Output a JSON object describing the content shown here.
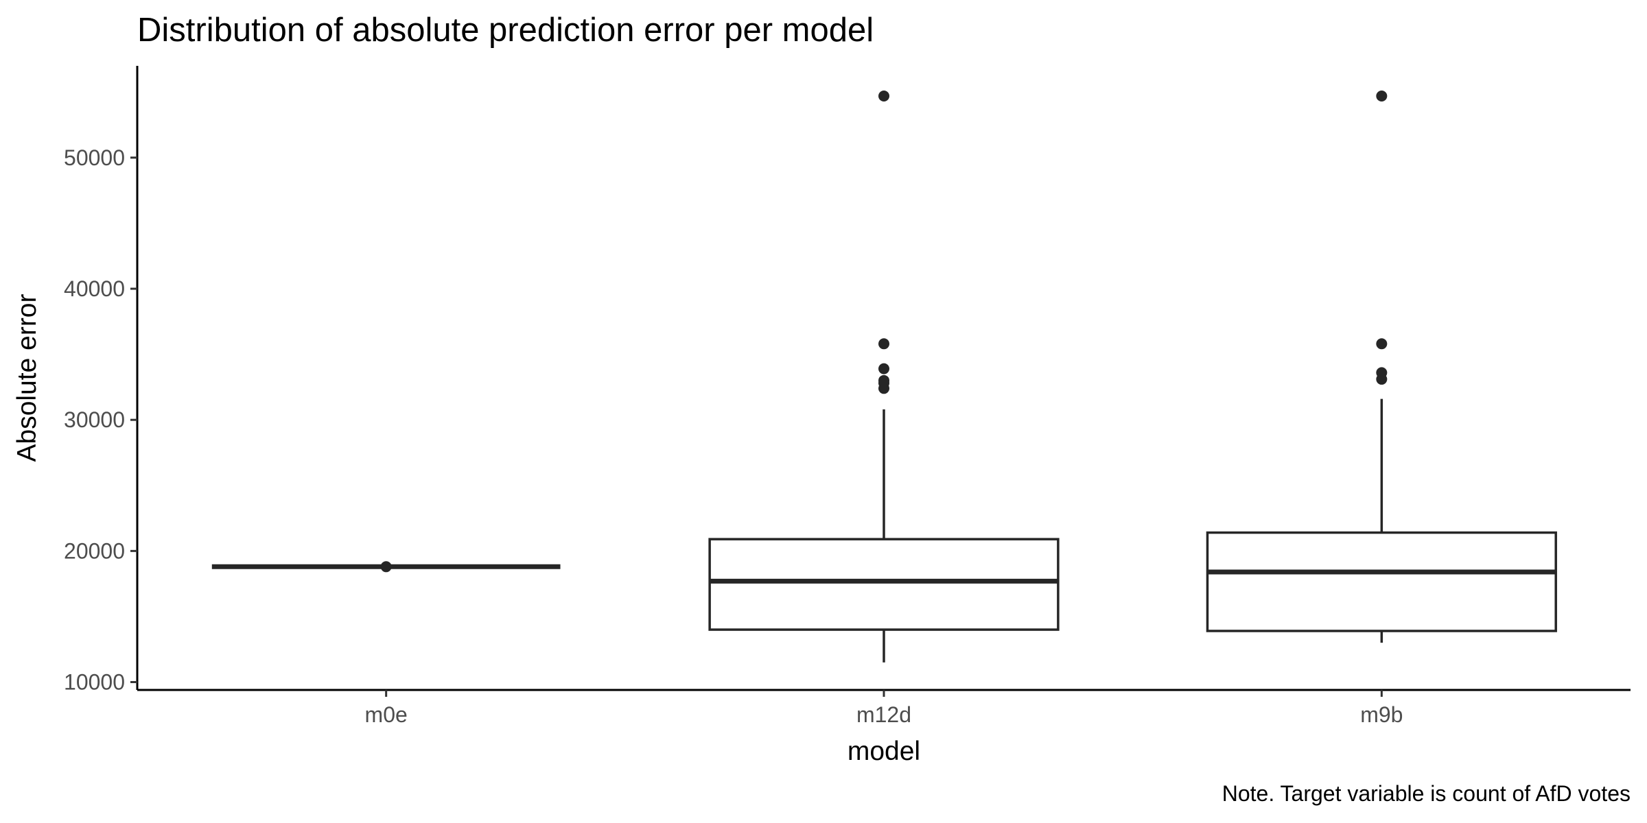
{
  "chart_data": {
    "type": "boxplot",
    "title": "Distribution of absolute prediction error per model",
    "xlabel": "model",
    "ylabel": "Absolute error",
    "caption": "Note. Target variable is count of AfD votes",
    "ylim": [
      9400,
      57000
    ],
    "yticks": [
      10000,
      20000,
      30000,
      40000,
      50000
    ],
    "grid": false,
    "legend": "none",
    "categories": [
      "m0e",
      "m12d",
      "m9b"
    ],
    "series": [
      {
        "category": "m0e",
        "min": 18800,
        "q1": 18800,
        "median": 18800,
        "q3": 18800,
        "max": 18800,
        "outliers": [
          18800
        ]
      },
      {
        "category": "m12d",
        "min": 11500,
        "q1": 14000,
        "median": 17700,
        "q3": 20900,
        "max": 30800,
        "outliers": [
          32400,
          32800,
          33000,
          33900,
          35800,
          54700
        ]
      },
      {
        "category": "m9b",
        "min": 13000,
        "q1": 13900,
        "median": 18400,
        "q3": 21400,
        "max": 31600,
        "outliers": [
          33100,
          33600,
          35800,
          54700
        ]
      }
    ]
  }
}
